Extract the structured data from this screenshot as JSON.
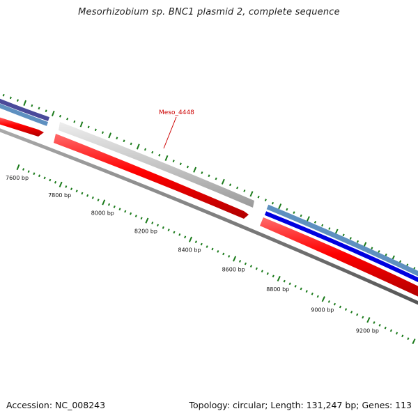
{
  "title": "Mesorhizobium sp. BNC1 plasmid 2, complete sequence",
  "footer": {
    "accession": "Accession: NC_008243",
    "summary": "Topology: circular; Length: 131,247 bp; Genes: 113"
  },
  "gene_label": "Meso_4448",
  "ticks": [
    {
      "label": "7600 bp"
    },
    {
      "label": "7800 bp"
    },
    {
      "label": "8000 bp"
    },
    {
      "label": "8200 bp"
    },
    {
      "label": "8400 bp"
    },
    {
      "label": "8600 bp"
    },
    {
      "label": "8800 bp"
    },
    {
      "label": "9000 bp"
    },
    {
      "label": "9200 bp"
    }
  ],
  "colors": {
    "cds_forward": "#ff0000",
    "pseudo_gray": "#c8c8c8",
    "blue_feature": "#0000e0",
    "steelblue_feature": "#5e90c0",
    "purple_feature": "#4a4a9a",
    "backbone": "#777777",
    "tick_green": "#1a7a1a",
    "label_red": "#cc0000"
  }
}
